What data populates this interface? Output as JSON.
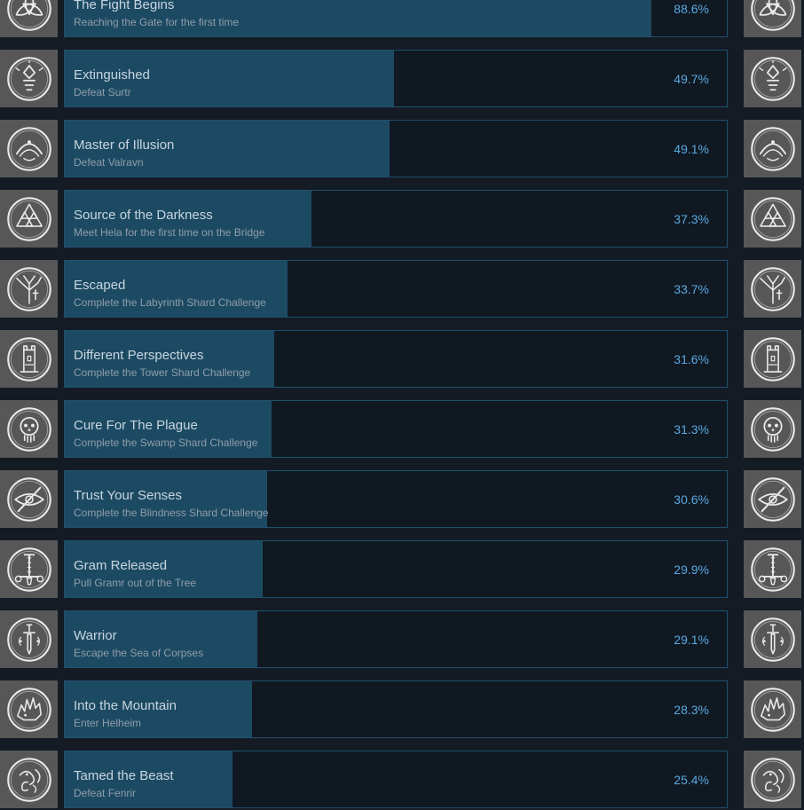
{
  "page": {
    "kind": "steam-global-achievements-list"
  },
  "colors": {
    "background": "#141b24",
    "row_background": "#101822",
    "row_border": "#20506e",
    "progress_fill": "#1d4a63",
    "icon_background": "#575757",
    "icon_art": "#e9e9e9",
    "title_text": "#c7d5e0",
    "description_text": "#8f9daa",
    "percent_text": "#58a9e0"
  },
  "achievements": [
    {
      "title": "The Fight Begins",
      "description": "Reaching the Gate for the first time",
      "percent": 88.6,
      "percent_label": "88.6%",
      "icon": "triquetra-knot"
    },
    {
      "title": "Extinguished",
      "description": "Defeat Surtr",
      "percent": 49.7,
      "percent_label": "49.7%",
      "icon": "surtr-flame-figure"
    },
    {
      "title": "Master of Illusion",
      "description": "Defeat Valravn",
      "percent": 49.1,
      "percent_label": "49.1%",
      "icon": "valravn-raven-knot"
    },
    {
      "title": "Source of the Darkness",
      "description": "Meet Hela for the first time on the Bridge",
      "percent": 37.3,
      "percent_label": "37.3%",
      "icon": "valknut-triangles"
    },
    {
      "title": "Escaped",
      "description": "Complete the Labyrinth Shard Challenge",
      "percent": 33.7,
      "percent_label": "33.7%",
      "icon": "tree-sword"
    },
    {
      "title": "Different Perspectives",
      "description": "Complete the Tower Shard Challenge",
      "percent": 31.6,
      "percent_label": "31.6%",
      "icon": "tower"
    },
    {
      "title": "Cure For The Plague",
      "description": "Complete the Swamp Shard Challenge",
      "percent": 31.3,
      "percent_label": "31.3%",
      "icon": "skull"
    },
    {
      "title": "Trust Your Senses",
      "description": "Complete the Blindness Shard Challenge",
      "percent": 30.6,
      "percent_label": "30.6%",
      "icon": "slashed-eye"
    },
    {
      "title": "Gram Released",
      "description": "Pull Gramr out of the Tree",
      "percent": 29.9,
      "percent_label": "29.9%",
      "icon": "inverted-sword"
    },
    {
      "title": "Warrior",
      "description": "Escape the Sea of Corpses",
      "percent": 29.1,
      "percent_label": "29.1%",
      "icon": "ornate-sword"
    },
    {
      "title": "Into the Mountain",
      "description": "Enter Helheim",
      "percent": 28.3,
      "percent_label": "28.3%",
      "icon": "spiked-beast-head"
    },
    {
      "title": "Tamed the Beast",
      "description": "Defeat Fenrir",
      "percent": 25.4,
      "percent_label": "25.4%",
      "icon": "wolf-knot"
    }
  ]
}
